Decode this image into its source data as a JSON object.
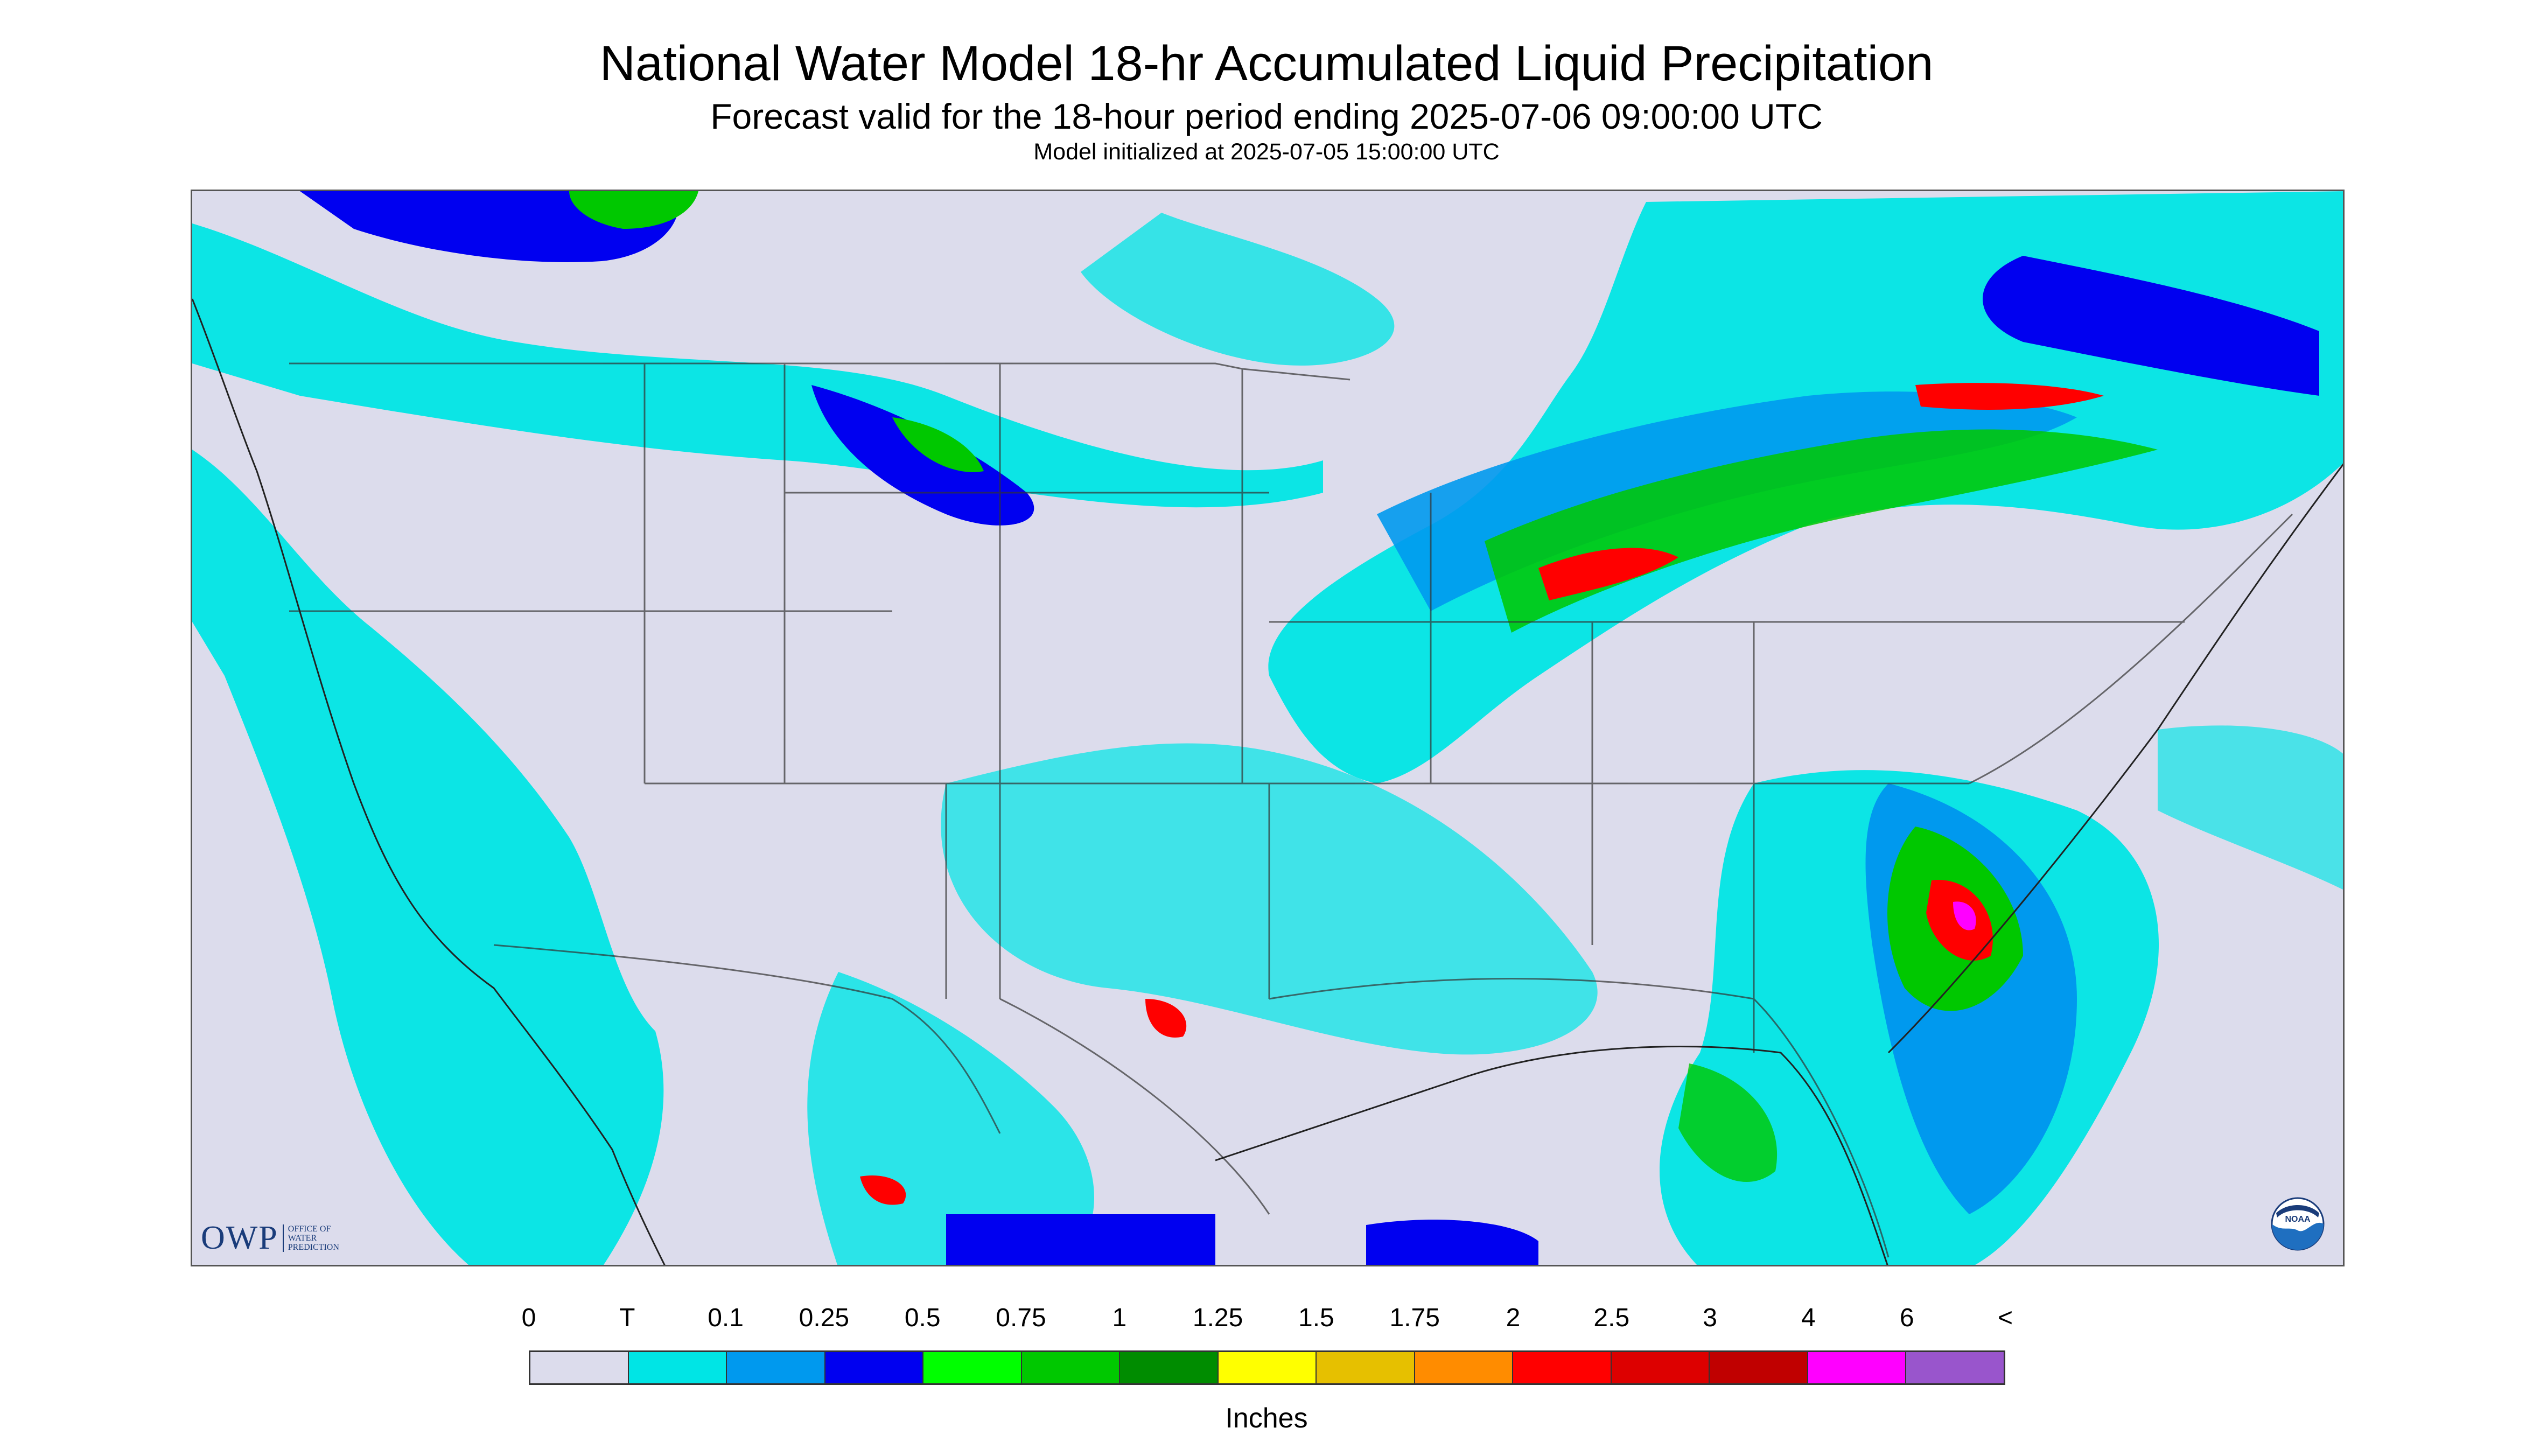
{
  "title": "National Water Model 18-hr Accumulated Liquid Precipitation",
  "subtitle": "Forecast valid for the 18-hour period ending 2025-07-06 09:00:00 UTC",
  "init_line": "Model initialized at 2025-07-05 15:00:00 UTC",
  "logo": {
    "owp": "OWP",
    "owp_sub": "Office of Water Prediction",
    "noaa": "NOAA"
  },
  "colors": {
    "no_data": "#dcdcec",
    "land": "#dcdcec",
    "border": "#555555"
  },
  "legend": {
    "ticks": [
      "0",
      "T",
      "0.1",
      "0.25",
      "0.5",
      "0.75",
      "1",
      "1.25",
      "1.5",
      "1.75",
      "2",
      "2.5",
      "3",
      "4",
      "6",
      "<"
    ],
    "colors": [
      "#dcdcec",
      "#00e5e5",
      "#0099ee",
      "#0000f0",
      "#00ff00",
      "#00c800",
      "#008c00",
      "#ffff00",
      "#e6c000",
      "#ff8c00",
      "#ff0000",
      "#dd0000",
      "#c00000",
      "#ff00ff",
      "#9955cc"
    ],
    "units": "Inches"
  }
}
